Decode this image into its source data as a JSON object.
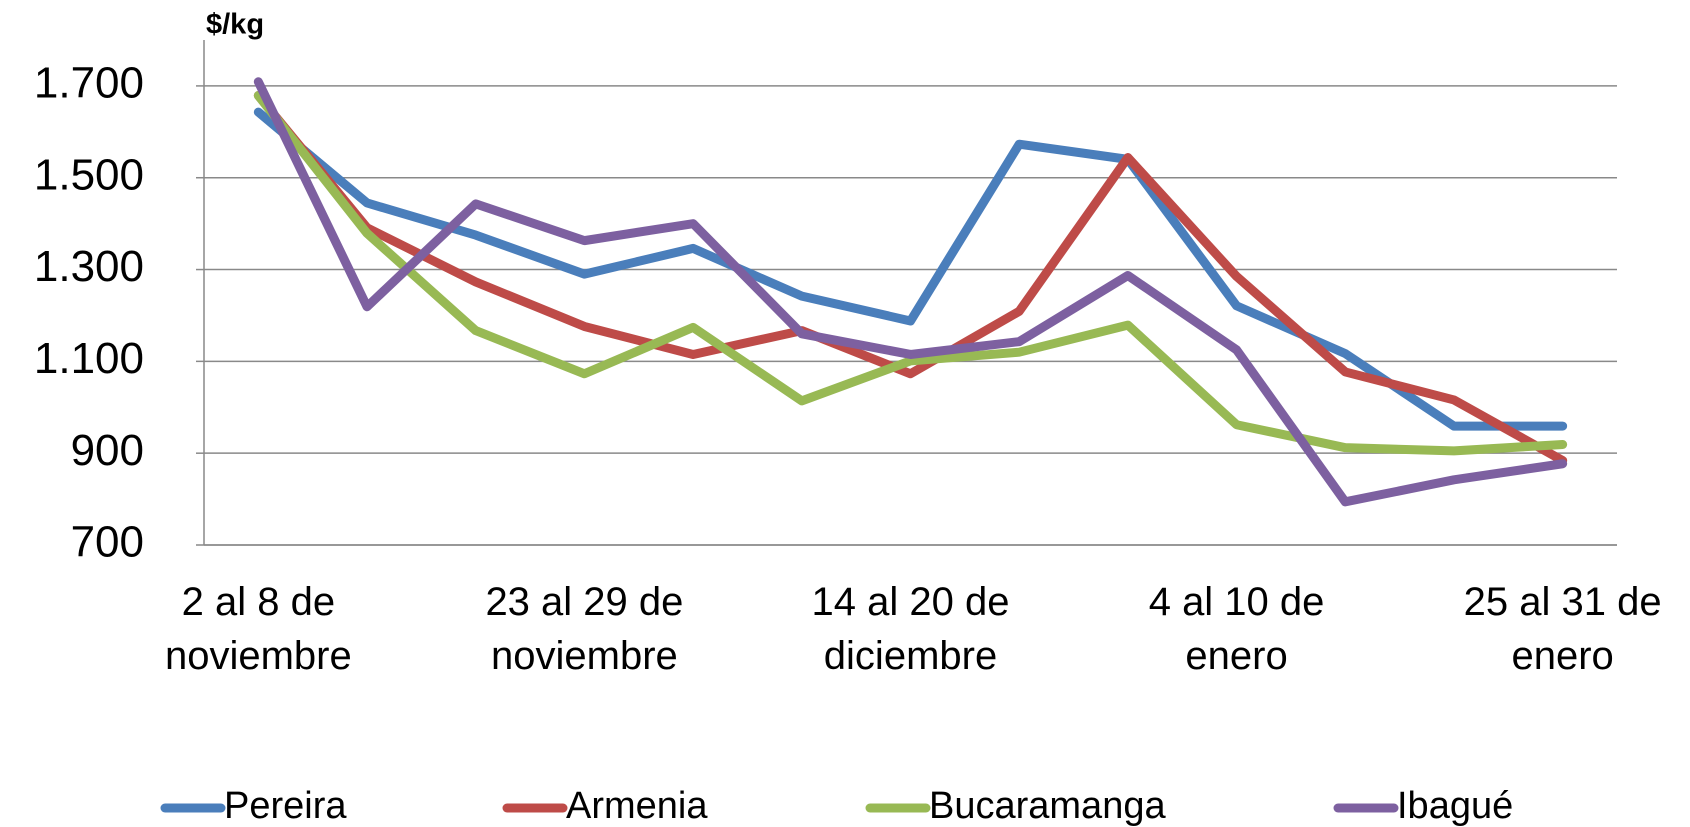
{
  "chart_data": {
    "type": "line",
    "y_label": "$/kg",
    "categories": [
      "2 al 8 de noviembre",
      null,
      null,
      "23 al 29 de noviembre",
      null,
      null,
      "14 al 20 de diciembre",
      null,
      null,
      "4 al 10 de enero",
      null,
      null,
      "25 al 31 de enero"
    ],
    "series": [
      {
        "name": "Pereira",
        "color": "#4a7ebb",
        "values": [
          1643,
          1445,
          1375,
          1290,
          1346,
          1242,
          1188,
          1573,
          1540,
          1221,
          1117,
          959,
          959
        ]
      },
      {
        "name": "Armenia",
        "color": "#be4b48",
        "values": [
          1679,
          1391,
          1273,
          1176,
          1115,
          1167,
          1073,
          1209,
          1544,
          1285,
          1077,
          1016,
          884
        ]
      },
      {
        "name": "Bucaramanga",
        "color": "#98b954",
        "values": [
          1679,
          1379,
          1167,
          1073,
          1174,
          1014,
          1101,
          1120,
          1179,
          962,
          912,
          905,
          919
        ]
      },
      {
        "name": "Ibagué",
        "color": "#7d60a0",
        "values": [
          1709,
          1219,
          1443,
          1363,
          1400,
          1160,
          1115,
          1143,
          1287,
          1125,
          794,
          842,
          877
        ]
      }
    ],
    "ylim": [
      700,
      1800
    ],
    "yticks": [
      700,
      900,
      {
        "value": 1100,
        "label": "1.100"
      },
      {
        "value": 1300,
        "label": "1.300"
      },
      {
        "value": 1500,
        "label": "1.500"
      },
      {
        "value": 1700,
        "label": "1.700"
      }
    ],
    "grid": true,
    "legend": "bottom"
  }
}
